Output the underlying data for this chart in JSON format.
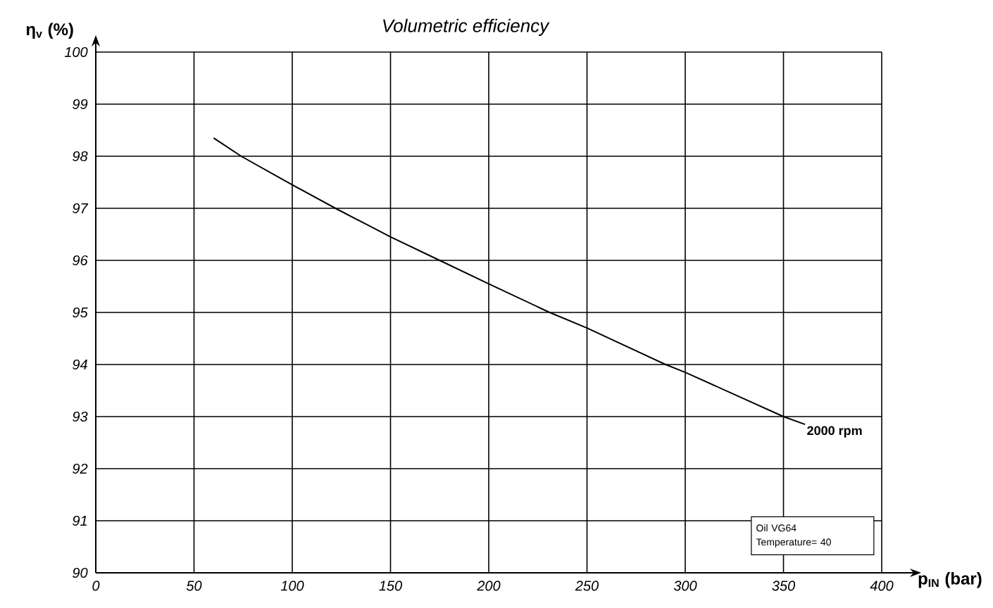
{
  "chart_data": {
    "type": "line",
    "title": "Volumetric efficiency",
    "xlabel": "p$_{IN}$ (bar)",
    "ylabel": "η$_{v}$ (%)",
    "x": [
      60,
      74,
      100,
      122,
      150,
      175,
      200,
      231,
      250,
      290,
      300,
      350,
      361
    ],
    "series": [
      {
        "name": "2000 rpm",
        "color": "#000000",
        "values": [
          98.35,
          98.0,
          97.45,
          97.0,
          96.45,
          96.0,
          95.55,
          95.0,
          94.7,
          94.0,
          93.85,
          93.0,
          92.85
        ]
      }
    ],
    "xlim": [
      0,
      400
    ],
    "ylim": [
      90,
      100
    ],
    "xticks": [
      0,
      50,
      100,
      150,
      200,
      250,
      300,
      350,
      400
    ],
    "yticks": [
      90,
      91,
      92,
      93,
      94,
      95,
      96,
      97,
      98,
      99,
      100
    ],
    "grid": true,
    "legend": false,
    "marker": "none",
    "line_style": "solid",
    "annotations": [
      "Oil VG64",
      "Temperature= 40"
    ]
  }
}
